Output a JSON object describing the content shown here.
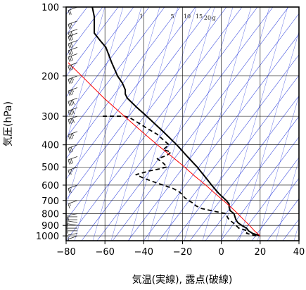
{
  "chart_data": {
    "type": "line",
    "subtype": "skew-T log-P thermodynamic diagram",
    "xlabel": "気温(実線), 露点(破線)",
    "ylabel": "気圧(hPa)",
    "xlim": [
      -80,
      40
    ],
    "ylim": [
      1050,
      100
    ],
    "y_scale": "log",
    "grid": true,
    "x_ticks": [
      -80,
      -60,
      -40,
      -20,
      0,
      20,
      40
    ],
    "y_ticks": [
      100,
      200,
      300,
      400,
      500,
      600,
      700,
      800,
      900,
      1000
    ],
    "mixing_ratio_labels": [
      "1",
      "5",
      "10",
      "15",
      "20",
      "g"
    ],
    "colors": {
      "background_lines": "#3344dd",
      "grid": "#000000",
      "temperature": "#000000",
      "dewpoint": "#000000",
      "parcel": "#ff0000"
    },
    "series": [
      {
        "style": "solid",
        "points": [
          {
            "p": 1000,
            "t": 20
          },
          {
            "p": 975,
            "t": 16
          },
          {
            "p": 950,
            "t": 14
          },
          {
            "p": 925,
            "t": 13
          },
          {
            "p": 900,
            "t": 10.5
          },
          {
            "p": 875,
            "t": 8.5
          },
          {
            "p": 850,
            "t": 7.5
          },
          {
            "p": 825,
            "t": 7
          },
          {
            "p": 800,
            "t": 6.5
          },
          {
            "p": 775,
            "t": 4.5
          },
          {
            "p": 750,
            "t": 4
          },
          {
            "p": 725,
            "t": 4
          },
          {
            "p": 700,
            "t": 2.5
          },
          {
            "p": 650,
            "t": -1.5
          },
          {
            "p": 600,
            "t": -5
          },
          {
            "p": 550,
            "t": -8.5
          },
          {
            "p": 500,
            "t": -12.5
          },
          {
            "p": 450,
            "t": -17.5
          },
          {
            "p": 400,
            "t": -23
          },
          {
            "p": 350,
            "t": -30
          },
          {
            "p": 300,
            "t": -38.5
          },
          {
            "p": 275,
            "t": -43.5
          },
          {
            "p": 250,
            "t": -48.5
          },
          {
            "p": 240,
            "t": -49.5
          },
          {
            "p": 230,
            "t": -49.5
          },
          {
            "p": 215,
            "t": -51
          },
          {
            "p": 200,
            "t": -53.5
          },
          {
            "p": 175,
            "t": -56.5
          },
          {
            "p": 150,
            "t": -59.5
          },
          {
            "p": 140,
            "t": -62.5
          },
          {
            "p": 130,
            "t": -65.5
          },
          {
            "p": 120,
            "t": -65.5
          },
          {
            "p": 110,
            "t": -65.5
          },
          {
            "p": 100,
            "t": -66.5
          }
        ]
      },
      {
        "style": "dashed",
        "points": [
          {
            "p": 1000,
            "t": 18
          },
          {
            "p": 975,
            "t": 13
          },
          {
            "p": 950,
            "t": 13.5
          },
          {
            "p": 925,
            "t": 9
          },
          {
            "p": 900,
            "t": 7.5
          },
          {
            "p": 875,
            "t": 6
          },
          {
            "p": 850,
            "t": 4
          },
          {
            "p": 825,
            "t": 3
          },
          {
            "p": 800,
            "t": 2.5
          },
          {
            "p": 780,
            "t": -4
          },
          {
            "p": 760,
            "t": -10
          },
          {
            "p": 740,
            "t": -13
          },
          {
            "p": 720,
            "t": -14.5
          },
          {
            "p": 700,
            "t": -17
          },
          {
            "p": 680,
            "t": -19
          },
          {
            "p": 660,
            "t": -20
          },
          {
            "p": 640,
            "t": -22
          },
          {
            "p": 620,
            "t": -25
          },
          {
            "p": 600,
            "t": -30
          },
          {
            "p": 580,
            "t": -35
          },
          {
            "p": 560,
            "t": -40
          },
          {
            "p": 540,
            "t": -44
          },
          {
            "p": 520,
            "t": -37
          },
          {
            "p": 510,
            "t": -32
          },
          {
            "p": 500,
            "t": -28
          },
          {
            "p": 480,
            "t": -30
          },
          {
            "p": 460,
            "t": -33
          },
          {
            "p": 445,
            "t": -28
          },
          {
            "p": 430,
            "t": -26
          },
          {
            "p": 420,
            "t": -30
          },
          {
            "p": 400,
            "t": -27
          },
          {
            "p": 380,
            "t": -30
          },
          {
            "p": 360,
            "t": -33
          },
          {
            "p": 340,
            "t": -38
          },
          {
            "p": 320,
            "t": -43
          },
          {
            "p": 305,
            "t": -47
          },
          {
            "p": 300,
            "t": -50
          },
          {
            "p": 300,
            "t": -62
          }
        ]
      },
      {
        "style": "solid-red",
        "points": [
          {
            "p": 1000,
            "t": 20
          },
          {
            "p": 950,
            "t": 17
          },
          {
            "p": 900,
            "t": 14.5
          },
          {
            "p": 850,
            "t": 11.5
          },
          {
            "p": 800,
            "t": 8.5
          },
          {
            "p": 750,
            "t": 5
          },
          {
            "p": 700,
            "t": 1
          },
          {
            "p": 650,
            "t": -3.5
          },
          {
            "p": 600,
            "t": -8
          },
          {
            "p": 550,
            "t": -13.5
          },
          {
            "p": 500,
            "t": -19
          },
          {
            "p": 450,
            "t": -25.5
          },
          {
            "p": 400,
            "t": -33
          },
          {
            "p": 350,
            "t": -41
          },
          {
            "p": 300,
            "t": -50
          },
          {
            "p": 250,
            "t": -60.5
          },
          {
            "p": 200,
            "t": -72
          },
          {
            "p": 175,
            "t": -79
          }
        ]
      }
    ],
    "wind_barbs": [
      {
        "p": 1000,
        "dir": 250,
        "spd": 10
      },
      {
        "p": 975,
        "dir": 260,
        "spd": 10
      },
      {
        "p": 950,
        "dir": 270,
        "spd": 5
      },
      {
        "p": 925,
        "dir": 270,
        "spd": 10
      },
      {
        "p": 900,
        "dir": 280,
        "spd": 10
      },
      {
        "p": 875,
        "dir": 280,
        "spd": 10
      },
      {
        "p": 850,
        "dir": 270,
        "spd": 5
      },
      {
        "p": 825,
        "dir": 270,
        "spd": 5
      },
      {
        "p": 800,
        "dir": 260,
        "spd": 10
      },
      {
        "p": 700,
        "dir": 250,
        "spd": 15
      },
      {
        "p": 600,
        "dir": 250,
        "spd": 20
      },
      {
        "p": 500,
        "dir": 250,
        "spd": 25
      },
      {
        "p": 450,
        "dir": 250,
        "spd": 30
      },
      {
        "p": 400,
        "dir": 250,
        "spd": 30
      },
      {
        "p": 350,
        "dir": 250,
        "spd": 35
      },
      {
        "p": 300,
        "dir": 250,
        "spd": 40
      },
      {
        "p": 275,
        "dir": 250,
        "spd": 40
      },
      {
        "p": 250,
        "dir": 250,
        "spd": 40
      },
      {
        "p": 225,
        "dir": 250,
        "spd": 35
      },
      {
        "p": 200,
        "dir": 250,
        "spd": 35
      },
      {
        "p": 175,
        "dir": 250,
        "spd": 30
      },
      {
        "p": 160,
        "dir": 250,
        "spd": 30
      },
      {
        "p": 150,
        "dir": 250,
        "spd": 30
      },
      {
        "p": 140,
        "dir": 250,
        "spd": 30
      },
      {
        "p": 130,
        "dir": 250,
        "spd": 30
      },
      {
        "p": 125,
        "dir": 250,
        "spd": 30
      },
      {
        "p": 115,
        "dir": 250,
        "spd": 25
      },
      {
        "p": 100,
        "dir": 250,
        "spd": 20
      }
    ]
  }
}
